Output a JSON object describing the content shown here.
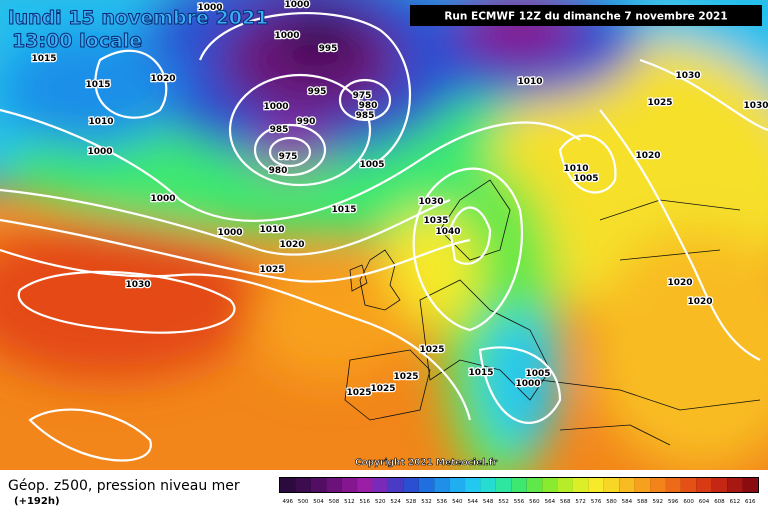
{
  "header": {
    "date": "lundi 15 novembre 2021",
    "time": "13:00 locale",
    "run": "Run ECMWF 12Z du dimanche 7 novembre 2021"
  },
  "copyright": "Copyright 2021 Meteociel.fr",
  "footer": {
    "title": "Géop. z500, pression niveau mer",
    "lead": "(+192h)"
  },
  "isobar_labels": [
    1000,
    1000,
    1000,
    995,
    1015,
    1020,
    1015,
    995,
    975,
    980,
    985,
    1000,
    990,
    985,
    975,
    980,
    1010,
    1000,
    1005,
    1010,
    1030,
    1025,
    1030,
    1020,
    1010,
    1005,
    1000,
    1015,
    1030,
    1035,
    1040,
    1000,
    1010,
    1020,
    1025,
    1030,
    1020,
    1020,
    1025,
    1025,
    1025,
    1025,
    1015,
    1005,
    1000
  ],
  "scale": {
    "values": [
      496,
      500,
      504,
      508,
      512,
      516,
      520,
      524,
      528,
      532,
      536,
      540,
      544,
      548,
      552,
      556,
      560,
      564,
      568,
      572,
      576,
      580,
      584,
      588,
      592,
      596,
      600,
      604,
      608,
      612,
      616
    ],
    "colors": [
      "#2b0a3d",
      "#3d0c4f",
      "#520e63",
      "#6b127a",
      "#84178f",
      "#9a1ea6",
      "#7a2ab8",
      "#4a3ac4",
      "#2a4fd1",
      "#1f6fe0",
      "#1f8fe8",
      "#20aef0",
      "#22c8ef",
      "#26dcd0",
      "#2ee6a0",
      "#3ee870",
      "#5ee84a",
      "#8aea30",
      "#b6ec28",
      "#dcee28",
      "#f6ea2a",
      "#f8d626",
      "#f8bc22",
      "#f6a01e",
      "#f2841a",
      "#ec6a18",
      "#e45016",
      "#d83a14",
      "#c42814",
      "#a81812",
      "#8a0c10"
    ]
  }
}
